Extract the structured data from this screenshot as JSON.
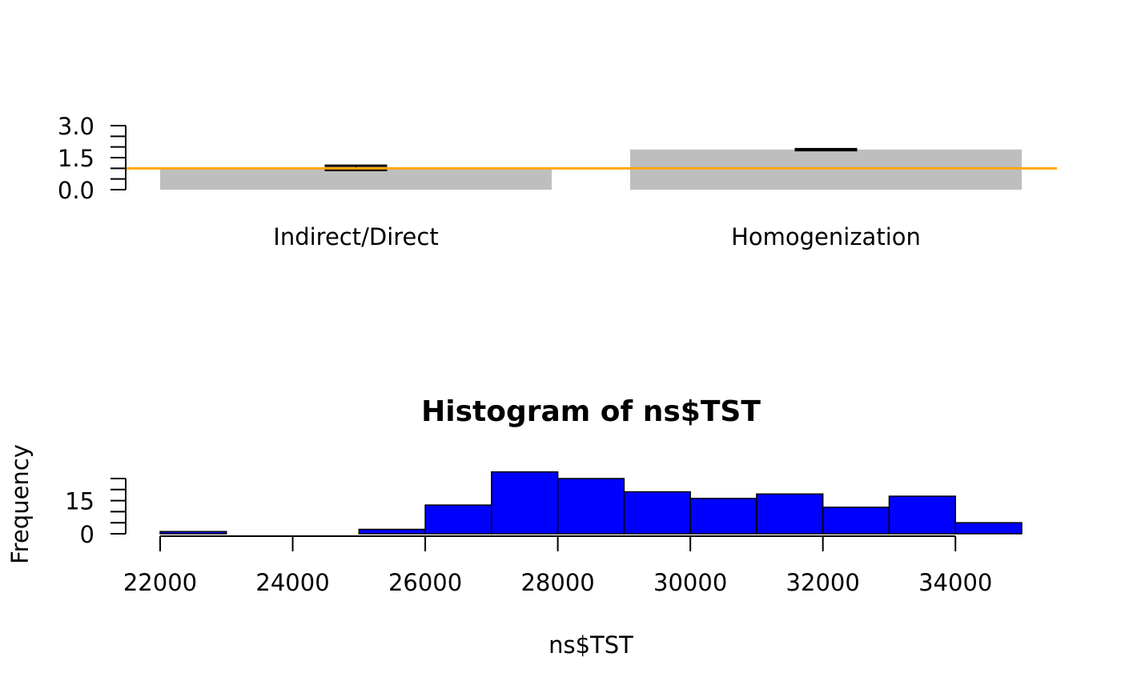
{
  "chart_data": [
    {
      "type": "bar",
      "categories": [
        "Indirect/Direct",
        "Homogenization"
      ],
      "values": [
        0.95,
        1.88
      ],
      "errors": [
        {
          "low": 0.92,
          "high": 1.12
        },
        {
          "low": 1.85,
          "high": 1.9
        }
      ],
      "reference_line": {
        "y": 1.0,
        "color": "#FFA500"
      },
      "bar_color": "#BEBEBE",
      "ylim": [
        0,
        3
      ],
      "yticks": [
        "0.0",
        "1.5",
        "3.0"
      ],
      "ytick_values": [
        0,
        1.5,
        3.0
      ],
      "yminor_ticks": [
        0,
        0.5,
        1.0,
        1.5,
        2.0,
        2.5,
        3.0
      ]
    },
    {
      "type": "histogram",
      "title": "Histogram of ns$TST",
      "xlabel": "ns$TST",
      "ylabel": "Frequency",
      "bin_edges": [
        22000,
        23000,
        24000,
        25000,
        26000,
        27000,
        28000,
        29000,
        30000,
        31000,
        32000,
        33000,
        34000,
        35000
      ],
      "counts": [
        1,
        0,
        0,
        2,
        13,
        28,
        25,
        19,
        16,
        18,
        12,
        17,
        5
      ],
      "bar_color": "#0000FF",
      "xticks": [
        "22000",
        "24000",
        "26000",
        "28000",
        "30000",
        "32000",
        "34000"
      ],
      "xtick_values": [
        22000,
        24000,
        26000,
        28000,
        30000,
        32000,
        34000
      ],
      "yticks": [
        "0",
        "15"
      ],
      "ytick_values": [
        0,
        15
      ],
      "yminor_ticks": [
        0,
        5,
        10,
        15,
        20,
        25
      ]
    }
  ]
}
